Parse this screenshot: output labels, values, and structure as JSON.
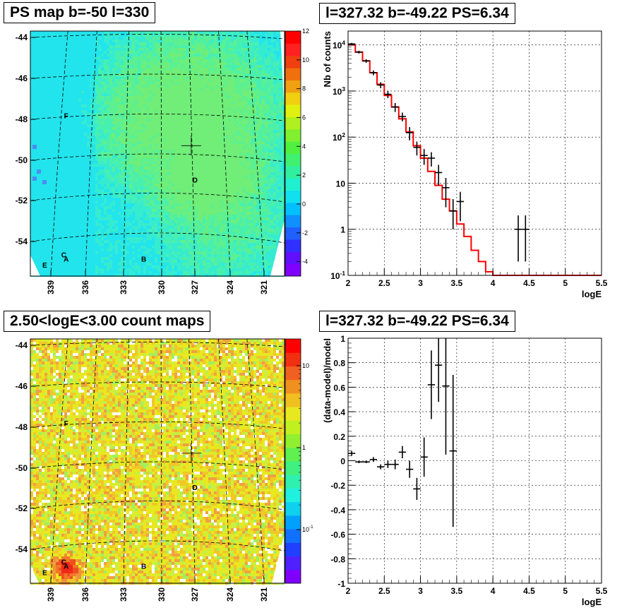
{
  "titles": {
    "ps_map": "PS map b=-50 l=330",
    "spectrum": "l=327.32 b=-49.22 PS=6.34",
    "count_map": "2.50<logE<3.00 count maps",
    "residual": "l=327.32 b=-49.22 PS=6.34"
  },
  "colors": {
    "model_line": "#ff0000",
    "data_points": "#000000",
    "map_base": "#22e8e8",
    "count_base": "#e8e020"
  },
  "chart_data": [
    {
      "type": "heatmap",
      "title": "PS map b=-50 l=330",
      "xlabel": "",
      "ylabel": "",
      "x_ticks": [
        "339",
        "336",
        "333",
        "330",
        "327",
        "324",
        "321"
      ],
      "y_ticks": [
        "-44",
        "-46",
        "-48",
        "-50",
        "-52",
        "-54"
      ],
      "colorbar_ticks": [
        "12",
        "10",
        "8",
        "6",
        "4",
        "2",
        "0",
        "-2",
        "-4"
      ],
      "zlim": [
        -5,
        12
      ],
      "markers": [
        {
          "label": "F",
          "l": 337.8,
          "b": -47.9
        },
        {
          "label": "D",
          "l": 327.0,
          "b": -51.0
        },
        {
          "label": "C",
          "l": 338.0,
          "b": -54.6
        },
        {
          "label": "A",
          "l": 337.8,
          "b": -54.8
        },
        {
          "label": "B",
          "l": 331.3,
          "b": -54.8
        },
        {
          "label": "E",
          "l": 339.6,
          "b": -55.1
        }
      ],
      "cross": {
        "l": 327.32,
        "b": -49.22
      }
    },
    {
      "type": "line",
      "title": "l=327.32 b=-49.22 PS=6.34",
      "xlabel": "logE",
      "ylabel": "Nb of counts",
      "xlim": [
        2,
        5.5
      ],
      "ylim": [
        0.1,
        20000
      ],
      "yscale": "log",
      "grid": true,
      "x_ticks": [
        "2",
        "2.5",
        "3",
        "3.5",
        "4",
        "4.5",
        "5",
        "5.5"
      ],
      "y_ticks": [
        "10^{-1}",
        "1",
        "10",
        "10^{2}",
        "10^{3}",
        "10^{4}"
      ],
      "series": [
        {
          "kind": "model_histogram",
          "bin_width": 0.1,
          "x": [
            2.05,
            2.15,
            2.25,
            2.35,
            2.45,
            2.55,
            2.65,
            2.75,
            2.85,
            2.95,
            3.05,
            3.15,
            3.25,
            3.35,
            3.45,
            3.55,
            3.65,
            3.75,
            3.85,
            3.95,
            4.05,
            4.15,
            4.25,
            4.35,
            4.45,
            4.55,
            4.65,
            4.75,
            4.85,
            4.95,
            5.05,
            5.15,
            5.25,
            5.35,
            5.45
          ],
          "values": [
            10000,
            7000,
            4500,
            2500,
            1400,
            800,
            450,
            250,
            130,
            65,
            35,
            18,
            9,
            4.5,
            2.5,
            1.3,
            0.7,
            0.35,
            0.2,
            0.12,
            0.1,
            0.1,
            0.1,
            0.1,
            0.1,
            0.1,
            0.1,
            0.1,
            0.1,
            0.1,
            0.1,
            0.1,
            0.1,
            0.1,
            0.1
          ]
        },
        {
          "kind": "data_points",
          "x": [
            2.05,
            2.15,
            2.25,
            2.35,
            2.45,
            2.55,
            2.65,
            2.75,
            2.85,
            2.95,
            3.05,
            3.15,
            3.25,
            3.35,
            3.45,
            3.55,
            4.35,
            4.45
          ],
          "values": [
            10500,
            7000,
            4500,
            2500,
            1350,
            850,
            450,
            280,
            125,
            60,
            40,
            35,
            17,
            8,
            2.5,
            4,
            1,
            1
          ],
          "err_lo": [
            600,
            500,
            400,
            300,
            200,
            150,
            100,
            60,
            40,
            20,
            15,
            12,
            8,
            5,
            1.5,
            2.5,
            0.8,
            0.8
          ],
          "err_hi": [
            600,
            500,
            400,
            300,
            200,
            150,
            100,
            60,
            40,
            20,
            15,
            12,
            8,
            5,
            2,
            2.5,
            1,
            1
          ]
        }
      ]
    },
    {
      "type": "heatmap",
      "title": "2.50<logE<3.00 count maps",
      "xlabel": "",
      "ylabel": "",
      "x_ticks": [
        "339",
        "336",
        "333",
        "330",
        "327",
        "324",
        "321"
      ],
      "y_ticks": [
        "-44",
        "-46",
        "-48",
        "-50",
        "-52",
        "-54"
      ],
      "colorbar_ticks": [
        "10",
        "1",
        "10^{-1}"
      ],
      "zscale": "log",
      "markers": [
        {
          "label": "F",
          "l": 337.8,
          "b": -47.9
        },
        {
          "label": "D",
          "l": 327.0,
          "b": -51.0
        },
        {
          "label": "C",
          "l": 338.0,
          "b": -54.6
        },
        {
          "label": "A",
          "l": 337.8,
          "b": -54.8
        },
        {
          "label": "B",
          "l": 331.3,
          "b": -54.8
        },
        {
          "label": "E",
          "l": 339.6,
          "b": -55.1
        }
      ],
      "cross": {
        "l": 327.32,
        "b": -49.22
      },
      "hotspot": {
        "l": 337.9,
        "b": -54.7
      }
    },
    {
      "type": "scatter",
      "title": "l=327.32 b=-49.22 PS=6.34",
      "xlabel": "logE",
      "ylabel": "(data-model)/model",
      "xlim": [
        2,
        5.5
      ],
      "ylim": [
        -1,
        1
      ],
      "grid": true,
      "x_ticks": [
        "2",
        "2.5",
        "3",
        "3.5",
        "4",
        "4.5",
        "5",
        "5.5"
      ],
      "y_ticks": [
        "-1",
        "-0.8",
        "-0.6",
        "-0.4",
        "-0.2",
        "0",
        "0.2",
        "0.4",
        "0.6",
        "0.8",
        "1"
      ],
      "series": [
        {
          "kind": "residuals",
          "x": [
            2.05,
            2.15,
            2.25,
            2.35,
            2.45,
            2.55,
            2.65,
            2.75,
            2.85,
            2.95,
            3.05,
            3.15,
            3.25,
            3.35,
            3.45
          ],
          "values": [
            0.06,
            -0.01,
            -0.01,
            0.01,
            -0.05,
            -0.03,
            -0.03,
            0.07,
            -0.07,
            -0.23,
            0.03,
            0.62,
            0.78,
            0.61,
            0.08
          ],
          "err": [
            0.02,
            0.01,
            0.01,
            0.02,
            0.02,
            0.03,
            0.04,
            0.05,
            0.07,
            0.09,
            0.16,
            0.28,
            0.3,
            0.56,
            0.62
          ]
        }
      ]
    }
  ]
}
